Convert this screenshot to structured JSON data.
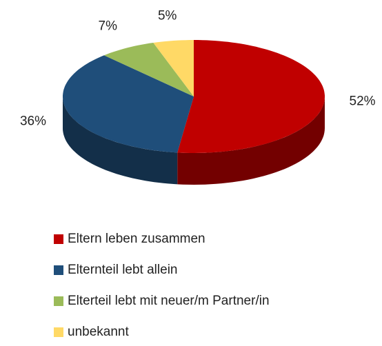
{
  "chart_data": {
    "type": "pie",
    "categories": [
      "Eltern leben zusammen",
      "Elternteil lebt allein",
      "Elterteil lebt mit neuer/m Partner/in",
      "unbekannt"
    ],
    "values": [
      52,
      36,
      7,
      5
    ],
    "value_labels": [
      "52%",
      "36%",
      "7%",
      "5%"
    ],
    "colors": [
      "#c00000",
      "#1f4e7a",
      "#9bbb59",
      "#ffd966"
    ],
    "legend": "bottom"
  }
}
